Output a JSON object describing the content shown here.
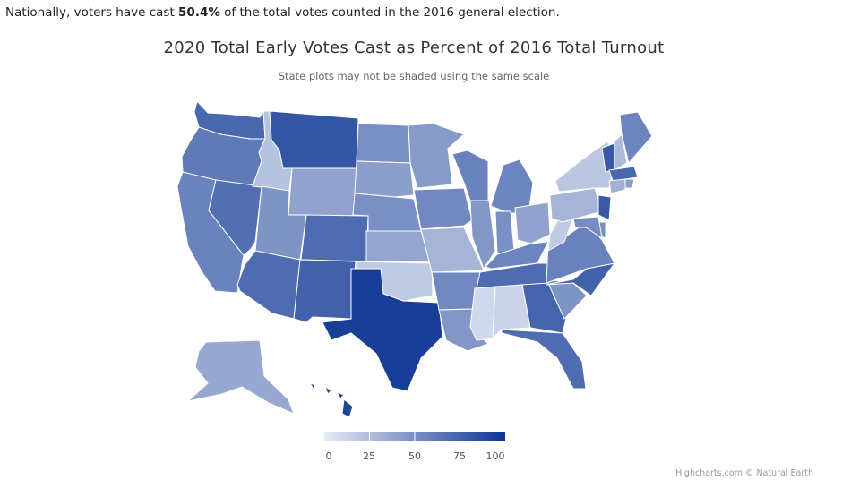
{
  "headline": {
    "prefix": "Nationally, voters have cast ",
    "value": "50.4%",
    "suffix": " of the total votes counted in the 2016 general election."
  },
  "title": "2020 Total Early Votes Cast as Percent of 2016 Total Turnout",
  "subtitle": "State plots may not be shaded using the same scale",
  "credits": "Highcharts.com © Natural Earth",
  "color_scale": {
    "min": 0,
    "max": 100,
    "min_color": "#e6ebf5",
    "max_color": "#0e3592"
  },
  "legend": {
    "ticks": [
      "0",
      "25",
      "50",
      "75",
      "100"
    ]
  },
  "chart_data": {
    "type": "map",
    "title": "2020 Total Early Votes Cast as Percent of 2016 Total Turnout",
    "subtitle": "State plots may not be shaded using the same scale",
    "value_range": [
      0,
      100
    ],
    "states": [
      {
        "code": "WA",
        "value": 72
      },
      {
        "code": "OR",
        "value": 62
      },
      {
        "code": "CA",
        "value": 57
      },
      {
        "code": "NV",
        "value": 68
      },
      {
        "code": "ID",
        "value": 22
      },
      {
        "code": "MT",
        "value": 82
      },
      {
        "code": "WY",
        "value": 40
      },
      {
        "code": "UT",
        "value": 48
      },
      {
        "code": "AZ",
        "value": 70
      },
      {
        "code": "CO",
        "value": 70
      },
      {
        "code": "NM",
        "value": 76
      },
      {
        "code": "ND",
        "value": 50
      },
      {
        "code": "SD",
        "value": 42
      },
      {
        "code": "NE",
        "value": 50
      },
      {
        "code": "KS",
        "value": 38
      },
      {
        "code": "OK",
        "value": 18
      },
      {
        "code": "TX",
        "value": 95
      },
      {
        "code": "MN",
        "value": 44
      },
      {
        "code": "IA",
        "value": 54
      },
      {
        "code": "MO",
        "value": 30
      },
      {
        "code": "AR",
        "value": 54
      },
      {
        "code": "LA",
        "value": 46
      },
      {
        "code": "WI",
        "value": 58
      },
      {
        "code": "IL",
        "value": 46
      },
      {
        "code": "MI",
        "value": 56
      },
      {
        "code": "IN",
        "value": 50
      },
      {
        "code": "OH",
        "value": 40
      },
      {
        "code": "KY",
        "value": 56
      },
      {
        "code": "TN",
        "value": 70
      },
      {
        "code": "MS",
        "value": 10
      },
      {
        "code": "AL",
        "value": 13
      },
      {
        "code": "GA",
        "value": 74
      },
      {
        "code": "FL",
        "value": 70
      },
      {
        "code": "SC",
        "value": 48
      },
      {
        "code": "NC",
        "value": 76
      },
      {
        "code": "VA",
        "value": 58
      },
      {
        "code": "WV",
        "value": 18
      },
      {
        "code": "PA",
        "value": 30
      },
      {
        "code": "NY",
        "value": 20
      },
      {
        "code": "VT",
        "value": 80
      },
      {
        "code": "NH",
        "value": 26
      },
      {
        "code": "ME",
        "value": 56
      },
      {
        "code": "MA",
        "value": 72
      },
      {
        "code": "RI",
        "value": 42
      },
      {
        "code": "CT",
        "value": 32
      },
      {
        "code": "NJ",
        "value": 80
      },
      {
        "code": "DE",
        "value": 52
      },
      {
        "code": "MD",
        "value": 52
      },
      {
        "code": "AK",
        "value": 36
      },
      {
        "code": "HI",
        "value": 92
      }
    ]
  }
}
